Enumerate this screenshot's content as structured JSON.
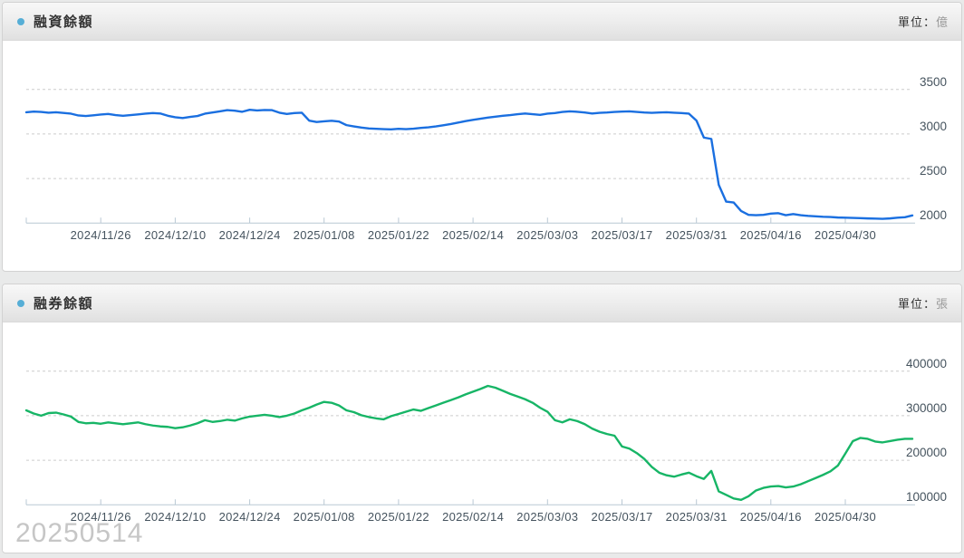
{
  "page": {
    "watermark": "20250514",
    "background": "#e9eaea"
  },
  "panels": [
    {
      "title": "融資餘額",
      "unit_label": "單位：",
      "unit": "億"
    },
    {
      "title": "融券餘額",
      "unit_label": "單位：",
      "unit": "張"
    }
  ],
  "colors": {
    "financing_line": "#1a6fe0",
    "short_line": "#17b566",
    "grid": "#cccccc",
    "axis": "#b9c8d4",
    "tick_label": "#45535e",
    "bullet": "#56aed6",
    "title": "#333333",
    "unit_value": "#999999",
    "watermark": "#c6c6c6"
  },
  "chart_data": [
    {
      "type": "line",
      "title": "融資餘額",
      "unit": "億",
      "ylim": [
        2000,
        3500
      ],
      "yticks": [
        2000,
        2500,
        3000,
        3500
      ],
      "grid": "horizontal-dashed",
      "y_axis_side": "right",
      "x_tick_labels": [
        "2024/11/26",
        "2024/12/10",
        "2024/12/24",
        "2025/01/08",
        "2025/01/22",
        "2025/02/14",
        "2025/03/03",
        "2025/03/17",
        "2025/03/31",
        "2025/04/16",
        "2025/04/30"
      ],
      "dates": [
        "2024/11/12",
        "2024/11/13",
        "2024/11/14",
        "2024/11/15",
        "2024/11/18",
        "2024/11/19",
        "2024/11/20",
        "2024/11/21",
        "2024/11/22",
        "2024/11/25",
        "2024/11/26",
        "2024/11/27",
        "2024/11/28",
        "2024/11/29",
        "2024/12/02",
        "2024/12/03",
        "2024/12/04",
        "2024/12/05",
        "2024/12/06",
        "2024/12/09",
        "2024/12/10",
        "2024/12/11",
        "2024/12/12",
        "2024/12/13",
        "2024/12/16",
        "2024/12/17",
        "2024/12/18",
        "2024/12/19",
        "2024/12/20",
        "2024/12/23",
        "2024/12/24",
        "2024/12/25",
        "2024/12/26",
        "2024/12/27",
        "2024/12/30",
        "2024/12/31",
        "2025/01/02",
        "2025/01/03",
        "2025/01/06",
        "2025/01/07",
        "2025/01/08",
        "2025/01/09",
        "2025/01/10",
        "2025/01/13",
        "2025/01/14",
        "2025/01/15",
        "2025/01/16",
        "2025/01/17",
        "2025/01/20",
        "2025/01/21",
        "2025/01/22",
        "2025/02/03",
        "2025/02/04",
        "2025/02/05",
        "2025/02/06",
        "2025/02/07",
        "2025/02/10",
        "2025/02/11",
        "2025/02/12",
        "2025/02/13",
        "2025/02/14",
        "2025/02/17",
        "2025/02/18",
        "2025/02/19",
        "2025/02/20",
        "2025/02/21",
        "2025/02/24",
        "2025/02/25",
        "2025/02/26",
        "2025/02/27",
        "2025/03/03",
        "2025/03/04",
        "2025/03/05",
        "2025/03/06",
        "2025/03/07",
        "2025/03/10",
        "2025/03/11",
        "2025/03/12",
        "2025/03/13",
        "2025/03/14",
        "2025/03/17",
        "2025/03/18",
        "2025/03/19",
        "2025/03/20",
        "2025/03/21",
        "2025/03/24",
        "2025/03/25",
        "2025/03/26",
        "2025/03/27",
        "2025/03/28",
        "2025/03/31",
        "2025/04/01",
        "2025/04/02",
        "2025/04/07",
        "2025/04/08",
        "2025/04/09",
        "2025/04/10",
        "2025/04/11",
        "2025/04/14",
        "2025/04/15",
        "2025/04/16",
        "2025/04/17",
        "2025/04/18",
        "2025/04/21",
        "2025/04/22",
        "2025/04/23",
        "2025/04/24",
        "2025/04/25",
        "2025/04/28",
        "2025/04/29",
        "2025/04/30",
        "2025/05/02",
        "2025/05/05",
        "2025/05/06",
        "2025/05/07",
        "2025/05/08",
        "2025/05/09",
        "2025/05/12",
        "2025/05/13",
        "2025/05/14"
      ],
      "values": [
        3245,
        3252,
        3248,
        3240,
        3244,
        3236,
        3228,
        3208,
        3202,
        3210,
        3218,
        3225,
        3212,
        3205,
        3212,
        3220,
        3228,
        3235,
        3230,
        3205,
        3188,
        3180,
        3192,
        3202,
        3228,
        3242,
        3255,
        3268,
        3262,
        3250,
        3272,
        3265,
        3270,
        3268,
        3240,
        3225,
        3235,
        3240,
        3150,
        3135,
        3142,
        3148,
        3140,
        3100,
        3085,
        3072,
        3062,
        3058,
        3055,
        3052,
        3058,
        3055,
        3060,
        3068,
        3075,
        3085,
        3098,
        3112,
        3128,
        3145,
        3158,
        3172,
        3185,
        3195,
        3205,
        3212,
        3222,
        3230,
        3222,
        3215,
        3228,
        3235,
        3248,
        3255,
        3250,
        3242,
        3230,
        3238,
        3242,
        3248,
        3252,
        3255,
        3248,
        3242,
        3238,
        3242,
        3245,
        3240,
        3235,
        3228,
        3150,
        2960,
        2945,
        2430,
        2240,
        2230,
        2135,
        2092,
        2088,
        2092,
        2105,
        2110,
        2088,
        2100,
        2088,
        2080,
        2075,
        2070,
        2068,
        2062,
        2060,
        2058,
        2055,
        2052,
        2050,
        2048,
        2052,
        2060,
        2065,
        2085
      ],
      "line_color": "#1a6fe0"
    },
    {
      "type": "line",
      "title": "融券餘額",
      "unit": "張",
      "ylim": [
        100000,
        400000
      ],
      "yticks": [
        100000,
        200000,
        300000,
        400000
      ],
      "grid": "horizontal-dashed",
      "y_axis_side": "right",
      "x_tick_labels": [
        "2024/11/26",
        "2024/12/10",
        "2024/12/24",
        "2025/01/08",
        "2025/01/22",
        "2025/02/14",
        "2025/03/03",
        "2025/03/17",
        "2025/03/31",
        "2025/04/16",
        "2025/04/30"
      ],
      "dates": [
        "2024/11/12",
        "2024/11/13",
        "2024/11/14",
        "2024/11/15",
        "2024/11/18",
        "2024/11/19",
        "2024/11/20",
        "2024/11/21",
        "2024/11/22",
        "2024/11/25",
        "2024/11/26",
        "2024/11/27",
        "2024/11/28",
        "2024/11/29",
        "2024/12/02",
        "2024/12/03",
        "2024/12/04",
        "2024/12/05",
        "2024/12/06",
        "2024/12/09",
        "2024/12/10",
        "2024/12/11",
        "2024/12/12",
        "2024/12/13",
        "2024/12/16",
        "2024/12/17",
        "2024/12/18",
        "2024/12/19",
        "2024/12/20",
        "2024/12/23",
        "2024/12/24",
        "2024/12/25",
        "2024/12/26",
        "2024/12/27",
        "2024/12/30",
        "2024/12/31",
        "2025/01/02",
        "2025/01/03",
        "2025/01/06",
        "2025/01/07",
        "2025/01/08",
        "2025/01/09",
        "2025/01/10",
        "2025/01/13",
        "2025/01/14",
        "2025/01/15",
        "2025/01/16",
        "2025/01/17",
        "2025/01/20",
        "2025/01/21",
        "2025/01/22",
        "2025/02/03",
        "2025/02/04",
        "2025/02/05",
        "2025/02/06",
        "2025/02/07",
        "2025/02/10",
        "2025/02/11",
        "2025/02/12",
        "2025/02/13",
        "2025/02/14",
        "2025/02/17",
        "2025/02/18",
        "2025/02/19",
        "2025/02/20",
        "2025/02/21",
        "2025/02/24",
        "2025/02/25",
        "2025/02/26",
        "2025/02/27",
        "2025/03/03",
        "2025/03/04",
        "2025/03/05",
        "2025/03/06",
        "2025/03/07",
        "2025/03/10",
        "2025/03/11",
        "2025/03/12",
        "2025/03/13",
        "2025/03/14",
        "2025/03/17",
        "2025/03/18",
        "2025/03/19",
        "2025/03/20",
        "2025/03/21",
        "2025/03/24",
        "2025/03/25",
        "2025/03/26",
        "2025/03/27",
        "2025/03/28",
        "2025/03/31",
        "2025/04/01",
        "2025/04/02",
        "2025/04/07",
        "2025/04/08",
        "2025/04/09",
        "2025/04/10",
        "2025/04/11",
        "2025/04/14",
        "2025/04/15",
        "2025/04/16",
        "2025/04/17",
        "2025/04/18",
        "2025/04/21",
        "2025/04/22",
        "2025/04/23",
        "2025/04/24",
        "2025/04/25",
        "2025/04/28",
        "2025/04/29",
        "2025/04/30",
        "2025/05/02",
        "2025/05/05",
        "2025/05/06",
        "2025/05/07",
        "2025/05/08",
        "2025/05/09",
        "2025/05/12",
        "2025/05/13",
        "2025/05/14"
      ],
      "values": [
        312000,
        305000,
        300000,
        306000,
        307000,
        303000,
        298000,
        286000,
        283000,
        284000,
        282000,
        285000,
        283000,
        281000,
        283000,
        285000,
        281000,
        278000,
        276000,
        275000,
        272000,
        274000,
        278000,
        283000,
        290000,
        286000,
        288000,
        291000,
        289000,
        294000,
        298000,
        300000,
        302000,
        300000,
        297000,
        300000,
        305000,
        312000,
        318000,
        325000,
        331000,
        329000,
        323000,
        312000,
        308000,
        301000,
        297000,
        294000,
        292000,
        299000,
        304000,
        309000,
        314000,
        311000,
        317000,
        323000,
        329000,
        335000,
        341000,
        348000,
        354000,
        360000,
        367000,
        363000,
        356000,
        349000,
        343000,
        337000,
        329000,
        318000,
        309000,
        290000,
        285000,
        292000,
        288000,
        281000,
        271000,
        264000,
        259000,
        255000,
        231000,
        226000,
        216000,
        203000,
        185000,
        172000,
        166000,
        163000,
        168000,
        172000,
        164000,
        158000,
        176000,
        130000,
        122000,
        114000,
        111000,
        119000,
        132000,
        138000,
        141000,
        142000,
        139000,
        141000,
        146000,
        153000,
        160000,
        167000,
        175000,
        188000,
        215000,
        243000,
        250000,
        248000,
        242000,
        240000,
        243000,
        246000,
        248000,
        248000
      ],
      "line_color": "#17b566"
    }
  ]
}
